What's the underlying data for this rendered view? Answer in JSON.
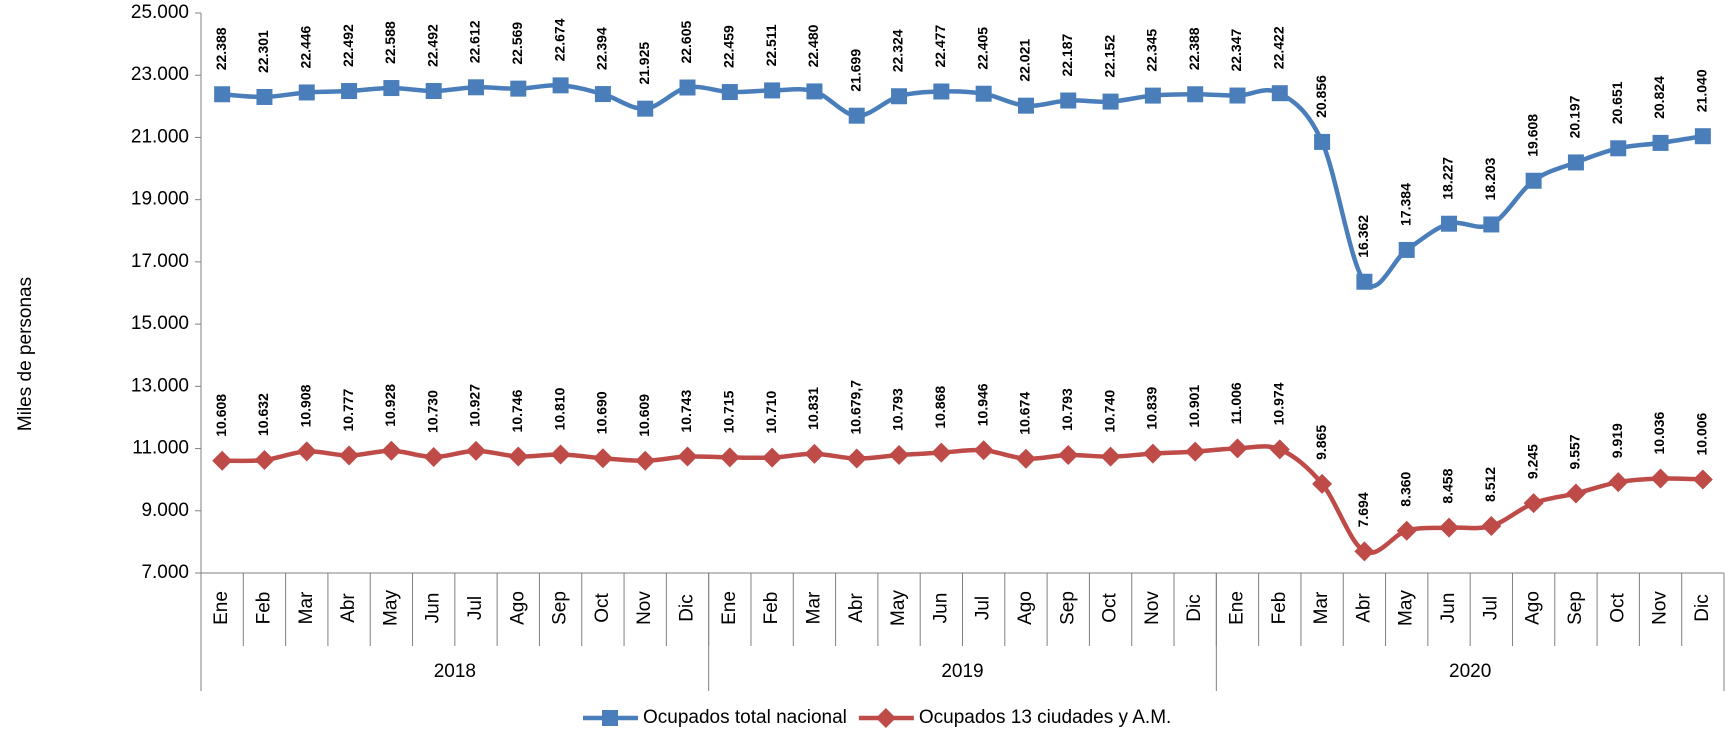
{
  "chart_data": {
    "type": "line",
    "y_axis_label": "Miles de personas",
    "categories": [
      "Ene",
      "Feb",
      "Mar",
      "Abr",
      "May",
      "Jun",
      "Jul",
      "Ago",
      "Sep",
      "Oct",
      "Nov",
      "Dic",
      "Ene",
      "Feb",
      "Mar",
      "Abr",
      "May",
      "Jun",
      "Jul",
      "Ago",
      "Sep",
      "Oct",
      "Nov",
      "Dic",
      "Ene",
      "Feb",
      "Mar",
      "Abr",
      "May",
      "Jun",
      "Jul",
      "Ago",
      "Sep",
      "Oct",
      "Nov",
      "Dic"
    ],
    "groups": [
      "2018",
      "2019",
      "2020"
    ],
    "series": [
      {
        "name": "Ocupados total nacional",
        "color": "#4a7ebb",
        "label_color": "#1f3a60",
        "marker": "square",
        "values": [
          22388,
          22301,
          22446,
          22492,
          22588,
          22492,
          22612,
          22569,
          22674,
          22394,
          21925,
          22605,
          22459,
          22511,
          22480,
          21699,
          22324,
          22477,
          22405,
          22021,
          22187,
          22152,
          22345,
          22388,
          22347,
          22422,
          20856,
          16362,
          17384,
          18227,
          18203,
          19608,
          20197,
          20651,
          20824,
          21040
        ],
        "value_labels": [
          "22.388",
          "22.301",
          "22.446",
          "22.492",
          "22.588",
          "22.492",
          "22.612",
          "22.569",
          "22.674",
          "22.394",
          "21.925",
          "22.605",
          "22.459",
          "22.511",
          "22.480",
          "21.699",
          "22.324",
          "22.477",
          "22.405",
          "22.021",
          "22.187",
          "22.152",
          "22.345",
          "22.388",
          "22.347",
          "22.422",
          "20.856",
          "16.362",
          "17.384",
          "18.227",
          "18.203",
          "19.608",
          "20.197",
          "20.651",
          "20.824",
          "21.040"
        ]
      },
      {
        "name": "Ocupados 13 ciudades y A.M.",
        "color": "#be4b48",
        "label_color": "#a0413e",
        "marker": "diamond",
        "values": [
          10608,
          10632,
          10908,
          10777,
          10928,
          10730,
          10927,
          10746,
          10810,
          10690,
          10609,
          10743,
          10715,
          10710,
          10831,
          10679.7,
          10793,
          10868,
          10946,
          10674,
          10793,
          10740,
          10839,
          10901,
          11006,
          10974,
          9865,
          7694,
          8360,
          8458,
          8512,
          9245,
          9557,
          9919,
          10036,
          10006
        ],
        "value_labels": [
          "10.608",
          "10.632",
          "10.908",
          "10.777",
          "10.928",
          "10.730",
          "10.927",
          "10.746",
          "10.810",
          "10.690",
          "10.609",
          "10.743",
          "10.715",
          "10.710",
          "10.831",
          "10.679,7",
          "10.793",
          "10.868",
          "10.946",
          "10.674",
          "10.793",
          "10.740",
          "10.839",
          "10.901",
          "11.006",
          "10.974",
          "9.865",
          "7.694",
          "8.360",
          "8.458",
          "8.512",
          "9.245",
          "9.557",
          "9.919",
          "10.036",
          "10.006"
        ]
      }
    ],
    "ylim": [
      7000,
      25000
    ],
    "yticks": [
      {
        "value": 7000,
        "label": "7.000"
      },
      {
        "value": 9000,
        "label": "9.000"
      },
      {
        "value": 11000,
        "label": "11.000"
      },
      {
        "value": 13000,
        "label": "13.000"
      },
      {
        "value": 15000,
        "label": "15.000"
      },
      {
        "value": 17000,
        "label": "17.000"
      },
      {
        "value": 19000,
        "label": "19.000"
      },
      {
        "value": 21000,
        "label": "21.000"
      },
      {
        "value": 23000,
        "label": "23.000"
      },
      {
        "value": 25000,
        "label": "25.000"
      }
    ],
    "grid": false,
    "legend": "bottom"
  }
}
